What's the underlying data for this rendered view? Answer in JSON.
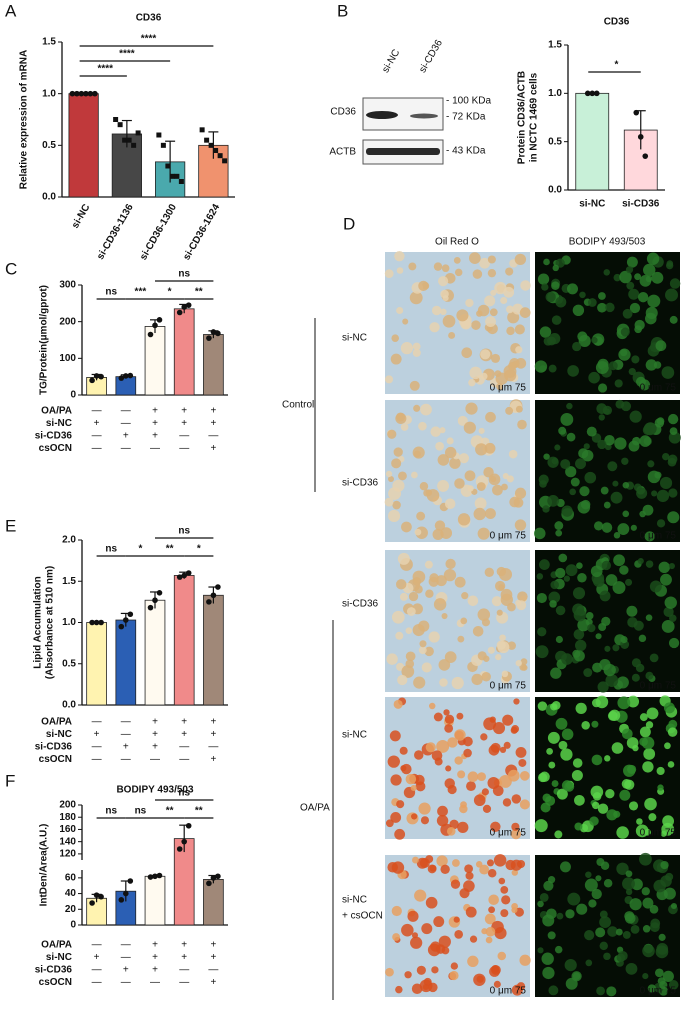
{
  "panel_letters": [
    "A",
    "B",
    "C",
    "D",
    "E",
    "F"
  ],
  "chart_data": [
    {
      "type": "bar",
      "title": "CD36",
      "ylabel": [
        "Relative expression of mRNA"
      ],
      "categories": [
        "si-NC",
        "si-CD36-1136",
        "si-CD36-1300",
        "si-CD36-1624"
      ],
      "values": [
        1.0,
        0.61,
        0.34,
        0.5
      ],
      "errors": [
        0,
        0.13,
        0.2,
        0.13
      ],
      "points": [
        [
          1,
          1,
          1,
          1,
          1,
          1
        ],
        [
          0.75,
          0.7,
          0.55,
          0.55,
          0.5,
          0.62
        ],
        [
          0.6,
          0.5,
          0.3,
          0.2,
          0.2,
          0.15
        ],
        [
          0.65,
          0.55,
          0.5,
          0.45,
          0.4,
          0.35
        ]
      ],
      "colors": [
        "#c0393b",
        "#474747",
        "#4aa9ad",
        "#f0926e"
      ],
      "ylim": [
        0,
        1.5
      ],
      "yticks": [
        {
          "value": 0,
          "label": "0.0"
        },
        {
          "value": 0.5,
          "label": "0.5"
        },
        {
          "value": 1,
          "label": "1.0"
        },
        {
          "value": 1.5,
          "label": "1.5"
        }
      ],
      "sig": [
        {
          "from": 0,
          "to": 1,
          "label": "****"
        },
        {
          "from": 0,
          "to": 2,
          "label": "****"
        },
        {
          "from": 0,
          "to": 3,
          "label": "****"
        }
      ]
    },
    {
      "type": "bar",
      "title": "CD36",
      "ylabel": [
        "Protein CD36/ACTB",
        "in NCTC 1469 cells"
      ],
      "categories": [
        "si-NC",
        "si-CD36"
      ],
      "values": [
        1.0,
        0.62
      ],
      "errors": [
        0,
        0.2
      ],
      "points": [
        [
          1,
          1,
          1
        ],
        [
          0.8,
          0.55,
          0.35
        ]
      ],
      "colors": [
        "#c8f0d8",
        "#ffd8dc"
      ],
      "ylim": [
        0,
        1.5
      ],
      "yticks": [
        {
          "value": 0,
          "label": "0.0"
        },
        {
          "value": 0.5,
          "label": "0.5"
        },
        {
          "value": 1,
          "label": "1.0"
        },
        {
          "value": 1.5,
          "label": "1.5"
        }
      ],
      "sig": [
        {
          "from": 0,
          "to": 1,
          "label": "*"
        }
      ]
    },
    {
      "type": "bar",
      "ylabel": [
        "TG/Protein(μmol/gprot)"
      ],
      "values": [
        48,
        50,
        187,
        235,
        165
      ],
      "errors": [
        8,
        5,
        18,
        12,
        10
      ],
      "points": [
        [
          40,
          52,
          50
        ],
        [
          46,
          52,
          53
        ],
        [
          165,
          190,
          205
        ],
        [
          225,
          240,
          245
        ],
        [
          155,
          172,
          168
        ]
      ],
      "colors": [
        "#fff3b0",
        "#2b5fb4",
        "#fffaf0",
        "#f08a8a",
        "#a08878"
      ],
      "ylim": [
        0,
        300
      ],
      "yticks": [
        0,
        100,
        200,
        300
      ],
      "sig": [
        {
          "from": 0,
          "to": 1,
          "label": "ns"
        },
        {
          "from": 1,
          "to": 2,
          "label": "***"
        },
        {
          "from": 2,
          "to": 3,
          "label": "*"
        },
        {
          "from": 3,
          "to": 4,
          "label": "**"
        },
        {
          "from": 2,
          "to": 4,
          "label": "ns"
        }
      ],
      "conditions": [
        {
          "name": "OA/PA",
          "values": [
            "—",
            "—",
            "+",
            "+",
            "+"
          ]
        },
        {
          "name": "si-NC",
          "values": [
            "+",
            "—",
            "+",
            "+",
            "+"
          ]
        },
        {
          "name": "si-CD36",
          "values": [
            "—",
            "+",
            "+",
            "—",
            "—"
          ]
        },
        {
          "name": "csOCN",
          "values": [
            "—",
            "—",
            "—",
            "—",
            "+"
          ]
        }
      ]
    },
    {
      "type": "bar",
      "ylabel": [
        "Lipid Accumulation",
        "(Absorbance at 510 nm)"
      ],
      "values": [
        1.0,
        1.03,
        1.27,
        1.57,
        1.33
      ],
      "errors": [
        0,
        0.08,
        0.1,
        0.04,
        0.1
      ],
      "points": [
        [
          1,
          1,
          1
        ],
        [
          0.95,
          1.03,
          1.1
        ],
        [
          1.18,
          1.27,
          1.36
        ],
        [
          1.55,
          1.57,
          1.6
        ],
        [
          1.25,
          1.33,
          1.43
        ]
      ],
      "colors": [
        "#fff3b0",
        "#2b5fb4",
        "#fffaf0",
        "#f08a8a",
        "#a08878"
      ],
      "ylim": [
        0,
        2
      ],
      "yticks": [
        {
          "value": 0,
          "label": "0.0"
        },
        {
          "value": 0.5,
          "label": "0.5"
        },
        {
          "value": 1,
          "label": "1.0"
        },
        {
          "value": 1.5,
          "label": "1.5"
        },
        {
          "value": 2,
          "label": "2.0"
        }
      ],
      "sig": [
        {
          "from": 0,
          "to": 1,
          "label": "ns"
        },
        {
          "from": 1,
          "to": 2,
          "label": "*"
        },
        {
          "from": 2,
          "to": 3,
          "label": "**"
        },
        {
          "from": 3,
          "to": 4,
          "label": "*"
        },
        {
          "from": 2,
          "to": 4,
          "label": "ns"
        }
      ],
      "conditions": [
        {
          "name": "OA/PA",
          "values": [
            "—",
            "—",
            "+",
            "+",
            "+"
          ]
        },
        {
          "name": "si-NC",
          "values": [
            "+",
            "—",
            "+",
            "+",
            "+"
          ]
        },
        {
          "name": "si-CD36",
          "values": [
            "—",
            "+",
            "+",
            "—",
            "—"
          ]
        },
        {
          "name": "csOCN",
          "values": [
            "—",
            "—",
            "—",
            "—",
            "+"
          ]
        }
      ]
    },
    {
      "type": "bar",
      "title": "BODIPY 493/503",
      "ylabel": [
        "IntDen/Area(A.U.)"
      ],
      "values": [
        34,
        43,
        62,
        145,
        58
      ],
      "errors": [
        5,
        13,
        1,
        22,
        5
      ],
      "points": [
        [
          28,
          38,
          36
        ],
        [
          32,
          40,
          56
        ],
        [
          61,
          62,
          63
        ],
        [
          128,
          140,
          166
        ],
        [
          53,
          60,
          62
        ]
      ],
      "colors": [
        "#fff3b0",
        "#2b5fb4",
        "#fffaf0",
        "#f08a8a",
        "#a08878"
      ],
      "ylim": [
        0,
        200
      ],
      "ybreak": [
        70,
        110
      ],
      "yticks": [
        0,
        20,
        40,
        60,
        120,
        140,
        160,
        180,
        200
      ],
      "sig": [
        {
          "from": 0,
          "to": 1,
          "label": "ns"
        },
        {
          "from": 1,
          "to": 2,
          "label": "ns"
        },
        {
          "from": 2,
          "to": 3,
          "label": "**"
        },
        {
          "from": 3,
          "to": 4,
          "label": "**"
        },
        {
          "from": 2,
          "to": 4,
          "label": "ns"
        }
      ],
      "conditions": [
        {
          "name": "OA/PA",
          "values": [
            "—",
            "—",
            "+",
            "+",
            "+"
          ]
        },
        {
          "name": "si-NC",
          "values": [
            "+",
            "—",
            "+",
            "+",
            "+"
          ]
        },
        {
          "name": "si-CD36",
          "values": [
            "—",
            "+",
            "+",
            "—",
            "—"
          ]
        },
        {
          "name": "csOCN",
          "values": [
            "—",
            "—",
            "—",
            "—",
            "+"
          ]
        }
      ]
    }
  ],
  "blot": {
    "lanes": [
      "si-NC",
      "si-CD36"
    ],
    "proteins": [
      "CD36",
      "ACTB"
    ],
    "markers": [
      "- 100 KDa",
      "- 72 KDa",
      "- 43 KDa"
    ]
  },
  "microscopy": {
    "columns": [
      "Oil Red O",
      "BODIPY 493/503"
    ],
    "rows": [
      [
        "si-NC"
      ],
      [
        "si-CD36"
      ],
      [
        "si-CD36"
      ],
      [
        "si-NC"
      ],
      [
        "si-NC",
        "+ csOCN"
      ]
    ],
    "groups": [
      "Control",
      "OA/PA"
    ],
    "scale_label": "0     μm     75"
  }
}
